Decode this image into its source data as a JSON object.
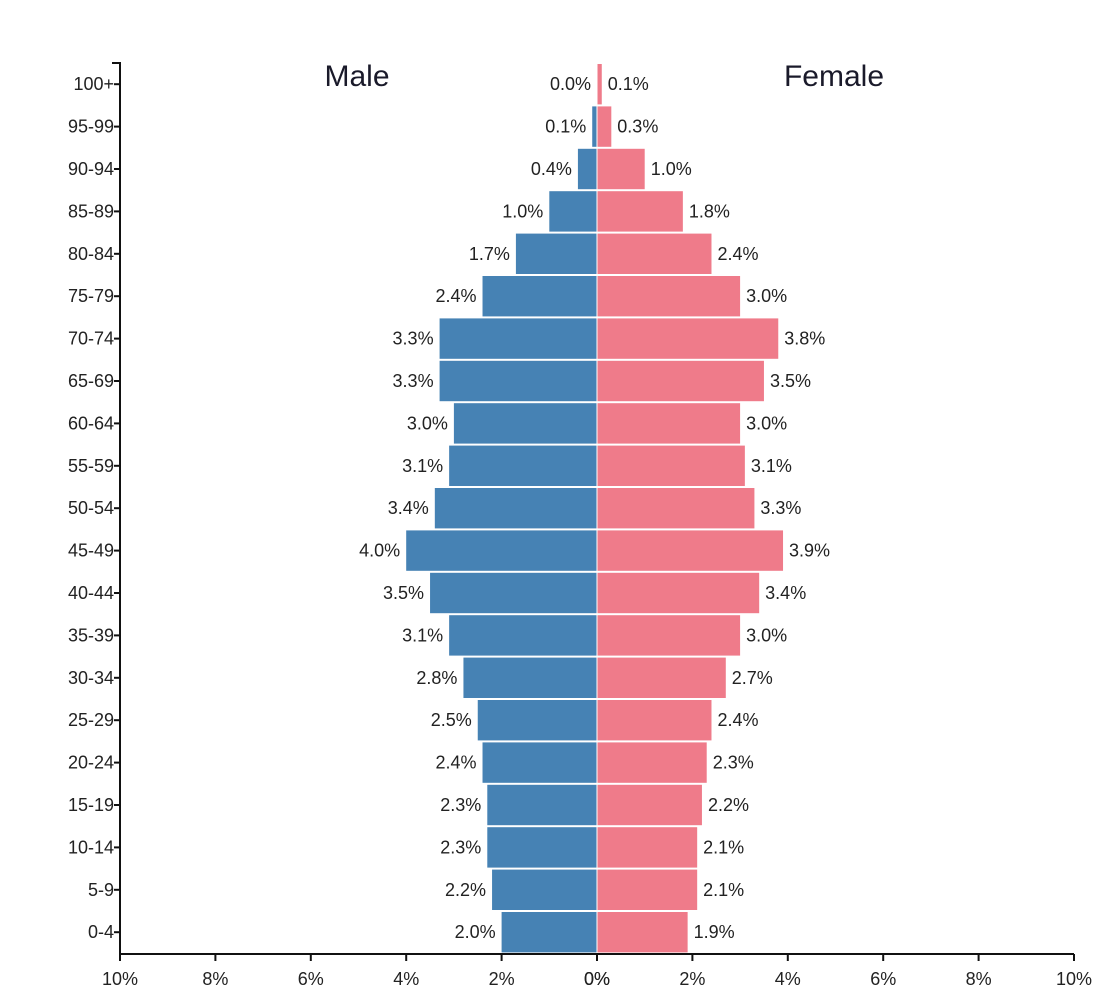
{
  "chart_data": {
    "type": "bar",
    "orientation": "horizontal-butterfly",
    "categories": [
      "100+",
      "95-99",
      "90-94",
      "85-89",
      "80-84",
      "75-79",
      "70-74",
      "65-69",
      "60-64",
      "55-59",
      "50-54",
      "45-49",
      "40-44",
      "35-39",
      "30-34",
      "25-29",
      "20-24",
      "15-19",
      "10-14",
      "5-9",
      "0-4"
    ],
    "series": [
      {
        "name": "Male",
        "side": "left",
        "color": "#4682b4",
        "values": [
          0.0,
          0.1,
          0.4,
          1.0,
          1.7,
          2.4,
          3.3,
          3.3,
          3.0,
          3.1,
          3.4,
          4.0,
          3.5,
          3.1,
          2.8,
          2.5,
          2.4,
          2.3,
          2.3,
          2.2,
          2.0
        ],
        "labels": [
          "0.0%",
          "0.1%",
          "0.4%",
          "1.0%",
          "1.7%",
          "2.4%",
          "3.3%",
          "3.3%",
          "3.0%",
          "3.1%",
          "3.4%",
          "4.0%",
          "3.5%",
          "3.1%",
          "2.8%",
          "2.5%",
          "2.4%",
          "2.3%",
          "2.3%",
          "2.2%",
          "2.0%"
        ]
      },
      {
        "name": "Female",
        "side": "right",
        "color": "#ef7b8a",
        "values": [
          0.1,
          0.3,
          1.0,
          1.8,
          2.4,
          3.0,
          3.8,
          3.5,
          3.0,
          3.1,
          3.3,
          3.9,
          3.4,
          3.0,
          2.7,
          2.4,
          2.3,
          2.2,
          2.1,
          2.1,
          1.9
        ],
        "labels": [
          "0.1%",
          "0.3%",
          "1.0%",
          "1.8%",
          "2.4%",
          "3.0%",
          "3.8%",
          "3.5%",
          "3.0%",
          "3.1%",
          "3.3%",
          "3.9%",
          "3.4%",
          "3.0%",
          "2.7%",
          "2.4%",
          "2.3%",
          "2.2%",
          "2.1%",
          "2.1%",
          "1.9%"
        ]
      }
    ],
    "xlim": [
      -10,
      10
    ],
    "x_ticks": [
      -10,
      -8,
      -6,
      -4,
      -2,
      0,
      2,
      4,
      6,
      8,
      10
    ],
    "x_tick_labels_left": [
      "10%",
      "8%",
      "6%",
      "4%",
      "2%",
      "0%"
    ],
    "x_tick_labels_right": [
      "0%",
      "2%",
      "4%",
      "6%",
      "8%",
      "10%"
    ],
    "side_titles": {
      "left": "Male",
      "right": "Female"
    },
    "grid": false
  }
}
